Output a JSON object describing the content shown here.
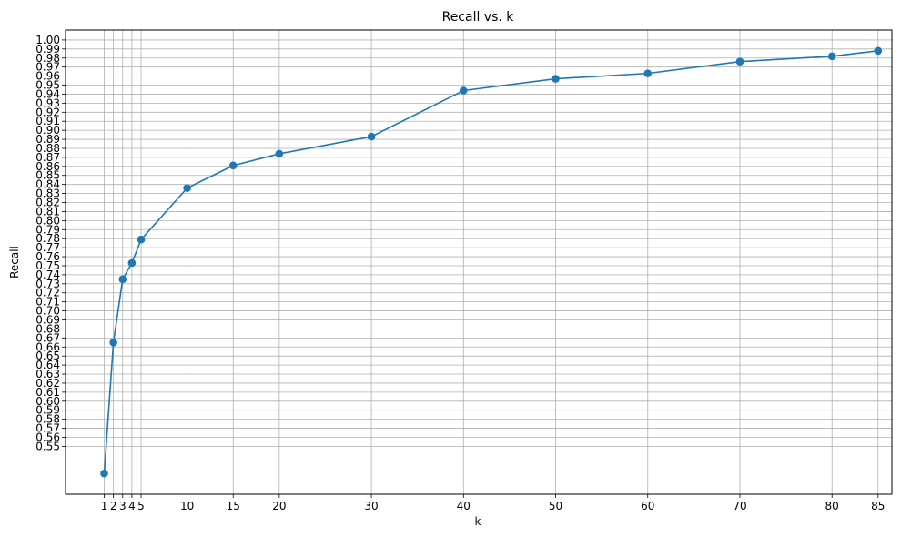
{
  "chart_data": {
    "type": "line",
    "title": "Recall vs. k",
    "xlabel": "k",
    "ylabel": "Recall",
    "x": [
      1,
      2,
      3,
      4,
      5,
      10,
      15,
      20,
      30,
      40,
      50,
      60,
      70,
      80,
      85
    ],
    "series": [
      {
        "values": [
          0.52,
          0.665,
          0.735,
          0.753,
          0.779,
          0.836,
          0.861,
          0.874,
          0.893,
          0.944,
          0.957,
          0.963,
          0.976,
          0.982,
          0.988
        ]
      }
    ],
    "xticks": [
      1,
      2,
      3,
      4,
      5,
      10,
      15,
      20,
      30,
      40,
      50,
      60,
      70,
      80,
      85
    ],
    "yticks": [
      0.55,
      0.56,
      0.57,
      0.58,
      0.59,
      0.6,
      0.61,
      0.62,
      0.63,
      0.64,
      0.65,
      0.66,
      0.67,
      0.68,
      0.69,
      0.7,
      0.71,
      0.72,
      0.73,
      0.74,
      0.75,
      0.76,
      0.77,
      0.78,
      0.79,
      0.8,
      0.81,
      0.82,
      0.83,
      0.84,
      0.85,
      0.86,
      0.87,
      0.88,
      0.89,
      0.9,
      0.91,
      0.92,
      0.93,
      0.94,
      0.95,
      0.96,
      0.97,
      0.98,
      0.99,
      1.0
    ],
    "xlim": [
      -3.2,
      86.5
    ],
    "ylim": [
      0.497,
      1.011
    ],
    "grid": true,
    "marker": "circle",
    "line_color": "#1f77b4",
    "grid_color": "#b0b0b0"
  }
}
